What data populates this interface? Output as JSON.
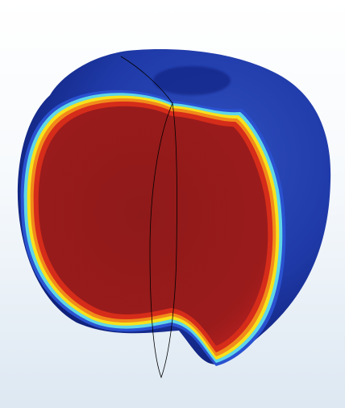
{
  "scene": {
    "subject": "sliced-apple-temperature-field",
    "colors": {
      "background_top": "#ffffff",
      "background_bottom": "#dde8f2",
      "surface_dark": "#0b1a6e",
      "surface_mid": "#1f3aa8",
      "surface_highlight": "#3150c0",
      "core_hot": "#9b1b1b",
      "band_red": "#d62c1a",
      "band_orange": "#f28a1a",
      "band_yellow": "#f6e21d",
      "band_cyan": "#5fd6e8",
      "band_blue": "#2a52d0",
      "edge_line": "#000000"
    }
  }
}
